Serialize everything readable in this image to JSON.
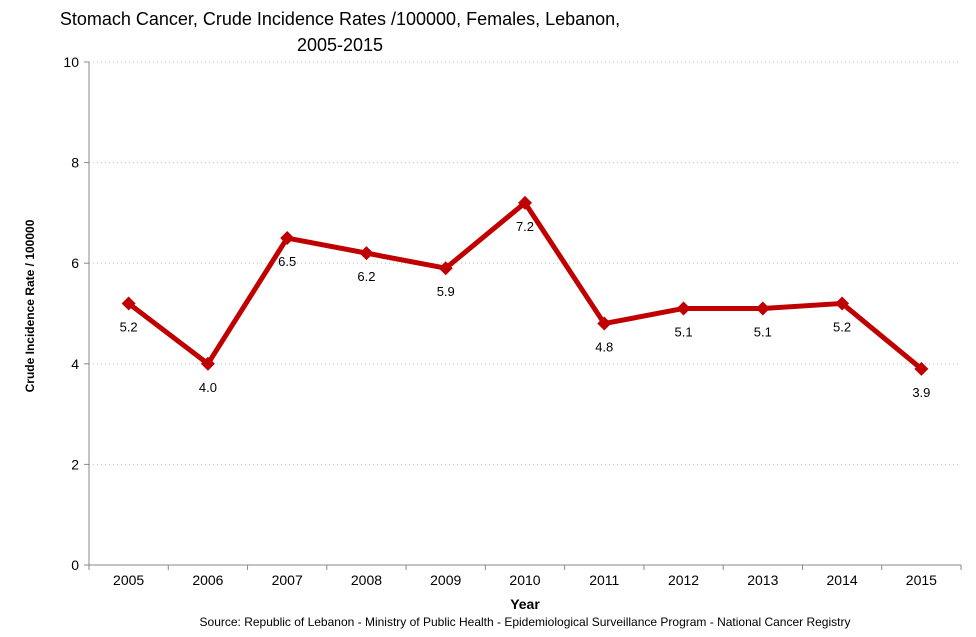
{
  "title": {
    "line1": "Stomach Cancer, Crude Incidence Rates /100000, Females, Lebanon,",
    "line2": "2005-2015"
  },
  "source": "Source: Republic of Lebanon - Ministry of Public Health - Epidemiological Surveillance Program - National Cancer Registry",
  "colors": {
    "series": "#C00000",
    "axis": "#898989",
    "grid": "#c3c3c3",
    "text": "#000000",
    "background": "#ffffff"
  },
  "chart_data": {
    "type": "line",
    "title": "Stomach Cancer, Crude Incidence Rates /100000, Females, Lebanon, 2005-2015",
    "categories": [
      "2005",
      "2006",
      "2007",
      "2008",
      "2009",
      "2010",
      "2011",
      "2012",
      "2013",
      "2014",
      "2015"
    ],
    "values": [
      5.2,
      4.0,
      6.5,
      6.2,
      5.9,
      7.2,
      4.8,
      5.1,
      5.1,
      5.2,
      3.9
    ],
    "data_labels": [
      "5.2",
      "4.0",
      "6.5",
      "6.2",
      "5.9",
      "7.2",
      "4.8",
      "5.1",
      "5.1",
      "5.2",
      "3.9"
    ],
    "xlabel": "Year",
    "ylabel": "Crude Incidence Rate / 100000",
    "ylim": [
      0,
      10
    ],
    "ytick_step": 2,
    "yticks": [
      "0",
      "2",
      "4",
      "6",
      "8",
      "10"
    ],
    "grid": "horizontal-dotted",
    "legend": "none",
    "marker": "diamond"
  }
}
